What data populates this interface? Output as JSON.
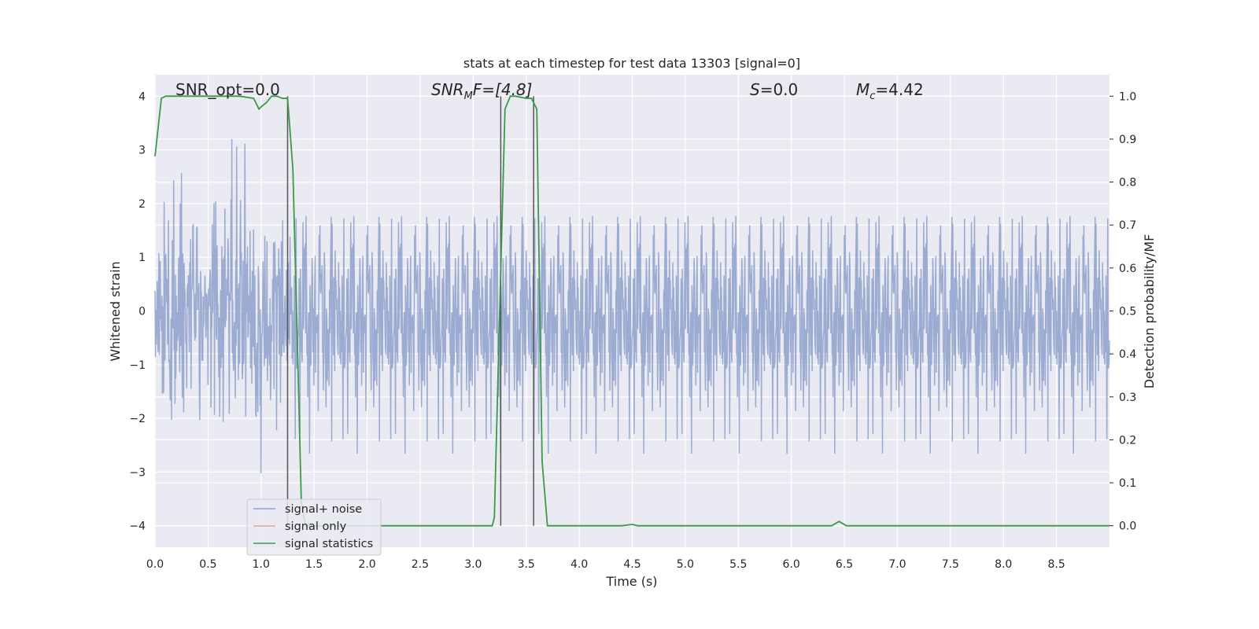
{
  "chart_data": {
    "type": "line",
    "title": "stats at each timestep for test data 13303 [signal=0]",
    "xlabel": "Time (s)",
    "ylabel_left": "Whitened strain",
    "ylabel_right": "Detection probability/MF",
    "xlim": [
      0.0,
      9.0
    ],
    "ylim_left": [
      -4.4,
      4.4
    ],
    "ylim_right": [
      -0.05,
      1.05
    ],
    "xticks": [
      0.0,
      0.5,
      1.0,
      1.5,
      2.0,
      2.5,
      3.0,
      3.5,
      4.0,
      4.5,
      5.0,
      5.5,
      6.0,
      6.5,
      7.0,
      7.5,
      8.0,
      8.5
    ],
    "xtick_labels": [
      "0.0",
      "0.5",
      "1.0",
      "1.5",
      "2.0",
      "2.5",
      "3.0",
      "3.5",
      "4.0",
      "4.5",
      "5.0",
      "5.5",
      "6.0",
      "6.5",
      "7.0",
      "7.5",
      "8.0",
      "8.5"
    ],
    "yticks_left": [
      -4,
      -3,
      -2,
      -1,
      0,
      1,
      2,
      3,
      4
    ],
    "ytick_labels_left": [
      "−4",
      "−3",
      "−2",
      "−1",
      "0",
      "1",
      "2",
      "3",
      "4"
    ],
    "yticks_right": [
      0.0,
      0.1,
      0.2,
      0.3,
      0.4,
      0.5,
      0.6,
      0.7,
      0.8,
      0.9,
      1.0
    ],
    "ytick_labels_right": [
      "0.0",
      "0.1",
      "0.2",
      "0.3",
      "0.4",
      "0.5",
      "0.6",
      "0.7",
      "0.8",
      "0.9",
      "1.0"
    ],
    "grid": true,
    "legend_position": "lower-left",
    "annotations": {
      "snr_opt": "SNR_opt=0.0",
      "snr_mf_var": "SNR",
      "snr_mf_sub": "M",
      "snr_mf_rest": "F=[4.8]",
      "s_var": "S",
      "s_rest": "=0.0",
      "mc_var": "M",
      "mc_sub": "c",
      "mc_rest": "=4.42"
    },
    "vertical_lines_x": [
      1.25,
      3.26,
      3.57
    ],
    "series": [
      {
        "name": "signal+ noise",
        "color": "#8da0cb",
        "description_values": "whitened noise strain sampled densely from 0 to 9 s, amplitude roughly within -4 to 4",
        "seed": 13303,
        "n_samples": 2200,
        "sigma": 1.0
      },
      {
        "name": "signal only",
        "color": "#e5a98f",
        "values": []
      },
      {
        "name": "signal statistics",
        "color": "#3a9a4a",
        "x": [
          0.0,
          0.06,
          0.1,
          0.2,
          0.4,
          0.6,
          0.8,
          0.93,
          0.98,
          1.0,
          1.05,
          1.1,
          1.15,
          1.2,
          1.25,
          1.3,
          1.35,
          1.38,
          1.42,
          2.0,
          3.0,
          3.18,
          3.2,
          3.25,
          3.3,
          3.35,
          3.4,
          3.5,
          3.55,
          3.6,
          3.65,
          3.7,
          4.0,
          4.4,
          4.5,
          4.55,
          5.0,
          6.0,
          6.38,
          6.45,
          6.52,
          7.0,
          8.0,
          9.0
        ],
        "y": [
          0.86,
          0.995,
          1.0,
          1.0,
          1.0,
          1.0,
          1.0,
          0.995,
          0.97,
          0.975,
          0.985,
          1.0,
          1.0,
          0.995,
          0.995,
          0.83,
          0.35,
          0.05,
          0.0,
          0.0,
          0.0,
          0.0,
          0.02,
          0.5,
          0.97,
          1.0,
          1.0,
          0.995,
          0.995,
          0.97,
          0.15,
          0.0,
          0.0,
          0.0,
          0.003,
          0.0,
          0.0,
          0.0,
          0.0,
          0.01,
          0.0,
          0.0,
          0.0,
          0.0
        ]
      }
    ]
  }
}
